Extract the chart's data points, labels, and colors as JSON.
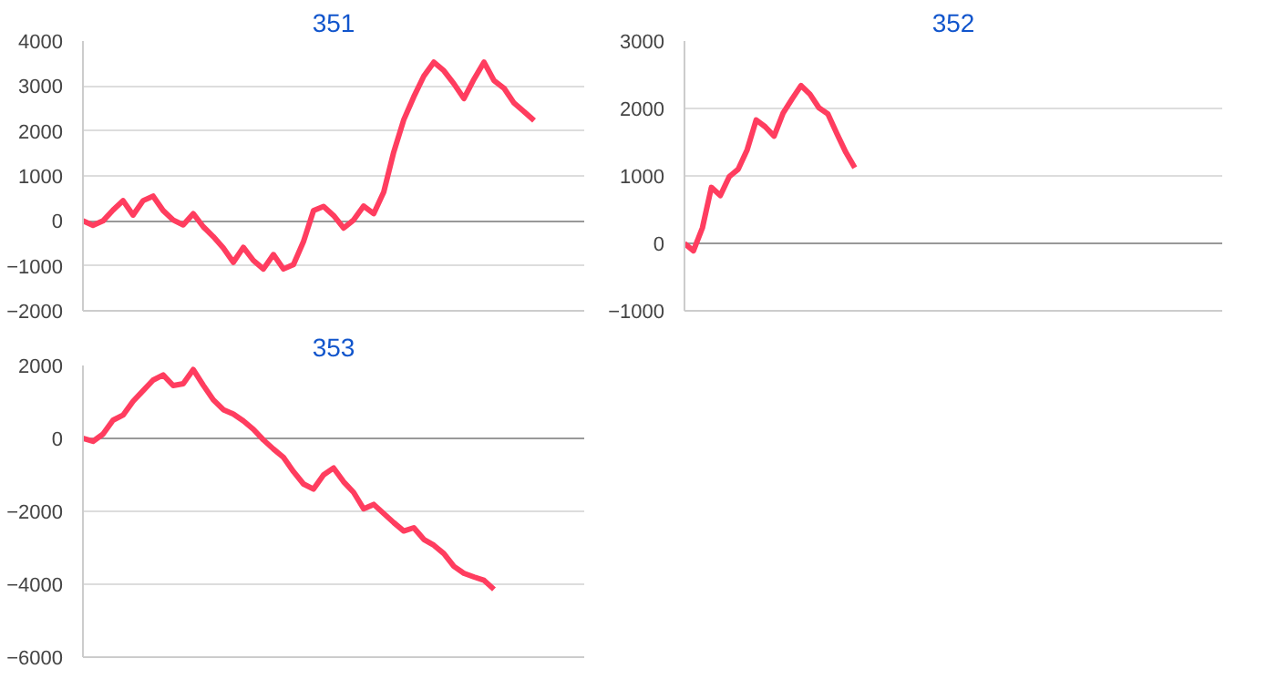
{
  "chart_data": [
    {
      "type": "line",
      "title": "351",
      "categories": [
        null,
        null,
        null,
        null,
        null,
        null,
        null,
        null,
        null,
        null,
        null,
        null,
        null,
        null,
        null,
        null,
        null,
        null,
        null,
        null,
        null,
        null,
        null,
        null,
        null,
        null,
        null,
        null,
        null,
        null,
        null,
        null,
        null,
        null,
        null,
        null,
        null,
        null,
        null,
        null,
        null,
        null,
        null,
        null,
        null,
        null,
        null,
        null,
        null,
        null,
        null
      ],
      "series": [
        {
          "color": "#ff3d5f",
          "values": [
            0,
            -100,
            0,
            240,
            450,
            130,
            450,
            550,
            230,
            20,
            -90,
            160,
            -130,
            -350,
            -600,
            -920,
            -590,
            -880,
            -1070,
            -750,
            -1070,
            -970,
            -460,
            230,
            320,
            120,
            -160,
            20,
            330,
            160,
            640,
            1530,
            2250,
            2760,
            3220,
            3530,
            3340,
            3050,
            2720,
            3150,
            3530,
            3120,
            2950,
            2620,
            2430,
            2230,
            null,
            null,
            null,
            null,
            null
          ]
        }
      ],
      "ylim": [
        -2000,
        4000
      ],
      "yticks": [
        -2000,
        -1000,
        0,
        1000,
        2000,
        3000,
        4000
      ],
      "grid": "y",
      "tick_labels": "y"
    },
    {
      "type": "line",
      "title": "352",
      "categories": [
        null,
        null,
        null,
        null,
        null,
        null,
        null,
        null,
        null,
        null,
        null,
        null,
        null,
        null,
        null,
        null,
        null,
        null,
        null,
        null,
        null,
        null,
        null,
        null,
        null,
        null,
        null,
        null,
        null,
        null,
        null,
        null,
        null,
        null,
        null,
        null,
        null,
        null,
        null,
        null,
        null,
        null,
        null,
        null,
        null,
        null,
        null,
        null,
        null,
        null,
        null,
        null,
        null,
        null,
        null,
        null,
        null,
        null,
        null,
        null,
        null
      ],
      "series": [
        {
          "color": "#ff3d5f",
          "values": [
            0,
            -110,
            230,
            830,
            710,
            990,
            1100,
            1390,
            1830,
            1730,
            1590,
            1930,
            2140,
            2340,
            2210,
            2010,
            1920,
            1630,
            1350,
            1120,
            null,
            null,
            null,
            null,
            null,
            null,
            null,
            null,
            null,
            null,
            null,
            null,
            null,
            null,
            null,
            null,
            null,
            null,
            null,
            null,
            null,
            null,
            null,
            null,
            null,
            null,
            null,
            null,
            null,
            null,
            null,
            null,
            null,
            null,
            null,
            null,
            null,
            null,
            null,
            null,
            null
          ]
        }
      ],
      "ylim": [
        -1000,
        3000
      ],
      "yticks": [
        -1000,
        0,
        1000,
        2000,
        3000
      ],
      "grid": "y",
      "tick_labels": "y"
    },
    {
      "type": "line",
      "title": "353",
      "categories": [
        null,
        null,
        null,
        null,
        null,
        null,
        null,
        null,
        null,
        null,
        null,
        null,
        null,
        null,
        null,
        null,
        null,
        null,
        null,
        null,
        null,
        null,
        null,
        null,
        null,
        null,
        null,
        null,
        null,
        null,
        null,
        null,
        null,
        null,
        null,
        null,
        null,
        null,
        null,
        null,
        null,
        null,
        null,
        null,
        null,
        null,
        null,
        null,
        null,
        null,
        null
      ],
      "series": [
        {
          "color": "#ff3d5f",
          "values": [
            0,
            -80,
            120,
            500,
            640,
            1020,
            1310,
            1600,
            1740,
            1450,
            1500,
            1890,
            1460,
            1060,
            790,
            670,
            480,
            250,
            -40,
            -290,
            -520,
            -910,
            -1250,
            -1390,
            -1000,
            -810,
            -1190,
            -1480,
            -1930,
            -1810,
            -2060,
            -2310,
            -2540,
            -2450,
            -2770,
            -2930,
            -3160,
            -3510,
            -3700,
            -3800,
            -3890,
            -4140,
            null,
            null,
            null,
            null,
            null,
            null,
            null,
            null,
            null
          ]
        }
      ],
      "ylim": [
        -6000,
        2000
      ],
      "yticks": [
        -6000,
        -4000,
        -2000,
        0,
        2000
      ],
      "grid": "y",
      "tick_labels": "y"
    }
  ]
}
